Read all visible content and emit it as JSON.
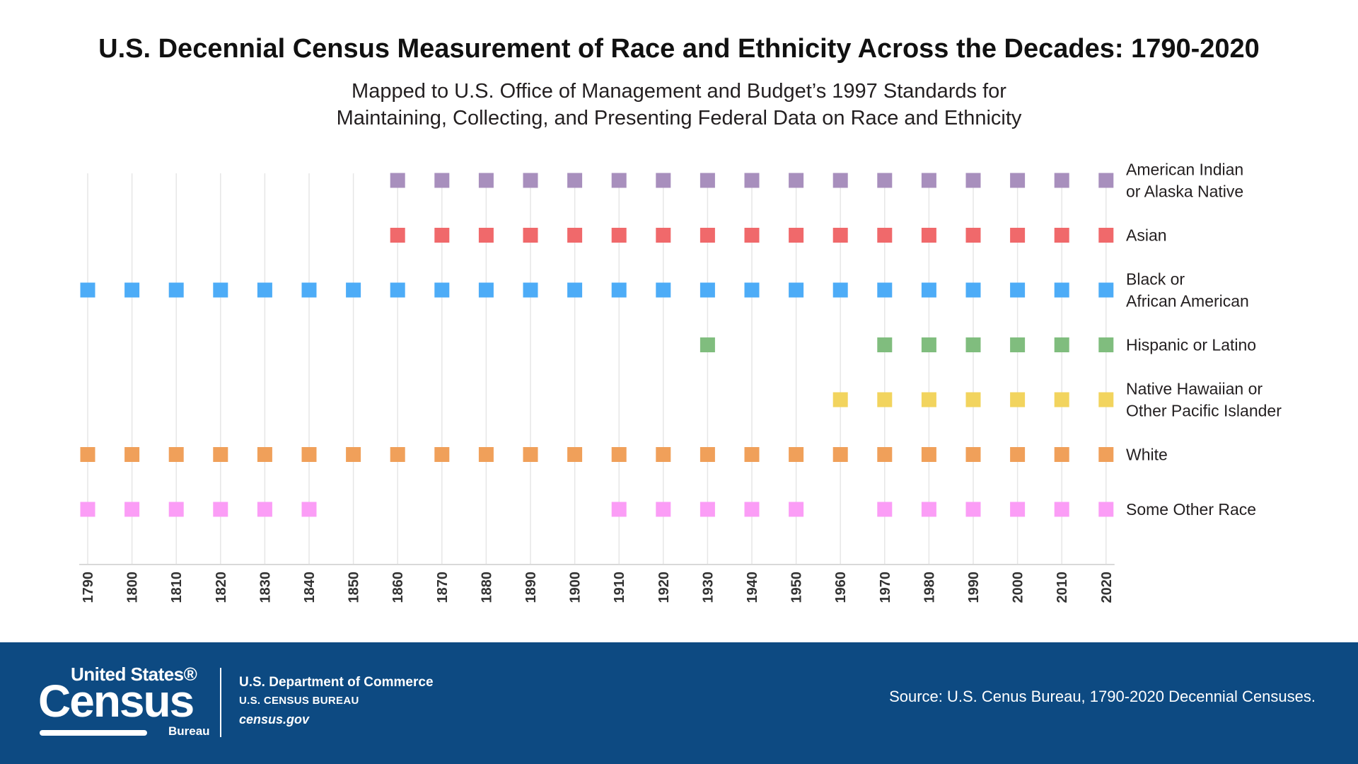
{
  "header": {
    "title": "U.S. Decennial Census Measurement of Race and Ethnicity Across the Decades: 1790-2020",
    "subtitle_line1": "Mapped to U.S. Office of Management and Budget’s 1997 Standards for",
    "subtitle_line2": "Maintaining, Collecting, and Presenting Federal Data on Race and Ethnicity"
  },
  "chart_data": {
    "type": "scatter",
    "x": [
      1790,
      1800,
      1810,
      1820,
      1830,
      1840,
      1850,
      1860,
      1870,
      1880,
      1890,
      1900,
      1910,
      1920,
      1930,
      1940,
      1950,
      1960,
      1970,
      1980,
      1990,
      2000,
      2010,
      2020
    ],
    "grid": true,
    "legend": "right",
    "series": [
      {
        "name": "American Indian or Alaska Native",
        "label_lines": [
          "American Indian",
          "or Alaska Native"
        ],
        "color": "#a88fbd",
        "years": [
          1860,
          1870,
          1880,
          1890,
          1900,
          1910,
          1920,
          1930,
          1940,
          1950,
          1960,
          1970,
          1980,
          1990,
          2000,
          2010,
          2020
        ]
      },
      {
        "name": "Asian",
        "label_lines": [
          "Asian"
        ],
        "color": "#f0696b",
        "years": [
          1860,
          1870,
          1880,
          1890,
          1900,
          1910,
          1920,
          1930,
          1940,
          1950,
          1960,
          1970,
          1980,
          1990,
          2000,
          2010,
          2020
        ]
      },
      {
        "name": "Black or African American",
        "label_lines": [
          "Black or",
          "African American"
        ],
        "color": "#4dacf7",
        "years": [
          1790,
          1800,
          1810,
          1820,
          1830,
          1840,
          1850,
          1860,
          1870,
          1880,
          1890,
          1900,
          1910,
          1920,
          1930,
          1940,
          1950,
          1960,
          1970,
          1980,
          1990,
          2000,
          2010,
          2020
        ]
      },
      {
        "name": "Hispanic or Latino",
        "label_lines": [
          "Hispanic or Latino"
        ],
        "color": "#80bd7e",
        "years": [
          1930,
          1970,
          1980,
          1990,
          2000,
          2010,
          2020
        ]
      },
      {
        "name": "Native Hawaiian or Other Pacific Islander",
        "label_lines": [
          "Native Hawaiian or",
          "Other Pacific Islander"
        ],
        "color": "#f2d45e",
        "years": [
          1960,
          1970,
          1980,
          1990,
          2000,
          2010,
          2020
        ]
      },
      {
        "name": "White",
        "label_lines": [
          "White"
        ],
        "color": "#f0a05a",
        "years": [
          1790,
          1800,
          1810,
          1820,
          1830,
          1840,
          1850,
          1860,
          1870,
          1880,
          1890,
          1900,
          1910,
          1920,
          1930,
          1940,
          1950,
          1960,
          1970,
          1980,
          1990,
          2000,
          2010,
          2020
        ]
      },
      {
        "name": "Some Other Race",
        "label_lines": [
          "Some Other Race"
        ],
        "color": "#fb9df6",
        "years": [
          1790,
          1800,
          1810,
          1820,
          1830,
          1840,
          1910,
          1920,
          1930,
          1940,
          1950,
          1970,
          1980,
          1990,
          2000,
          2010,
          2020
        ]
      }
    ]
  },
  "footer": {
    "logo_top": "United States®",
    "logo_main": "Census",
    "logo_bureau": "Bureau",
    "dept_line1": "U.S. Department of Commerce",
    "dept_line2": "U.S. CENSUS BUREAU",
    "dept_line3": "census.gov",
    "source": "Source: U.S. Cenus Bureau, 1790-2020 Decennial Censuses.",
    "background_color": "#0d4a82"
  }
}
